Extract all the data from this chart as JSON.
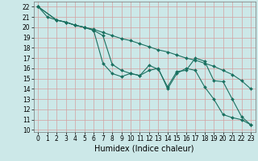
{
  "title": "",
  "xlabel": "Humidex (Indice chaleur)",
  "bg_color": "#cce8e8",
  "grid_color": "#d4a0a0",
  "line_color": "#1a7060",
  "xlim": [
    -0.5,
    23.5
  ],
  "ylim": [
    9.8,
    22.5
  ],
  "yticks": [
    10,
    11,
    12,
    13,
    14,
    15,
    16,
    17,
    18,
    19,
    20,
    21,
    22
  ],
  "xticks": [
    0,
    1,
    2,
    3,
    4,
    5,
    6,
    7,
    8,
    9,
    10,
    11,
    12,
    13,
    14,
    15,
    16,
    17,
    18,
    19,
    20,
    21,
    22,
    23
  ],
  "line1_x": [
    0,
    1,
    2,
    3,
    4,
    5,
    6,
    7,
    8,
    9,
    10,
    11,
    12,
    13,
    14,
    15,
    16,
    17,
    18,
    19,
    20,
    21,
    22,
    23
  ],
  "line1_y": [
    22,
    21,
    20.7,
    20.5,
    20.2,
    20.0,
    19.8,
    19.5,
    19.2,
    18.9,
    18.7,
    18.4,
    18.1,
    17.8,
    17.6,
    17.3,
    17.0,
    16.8,
    16.5,
    16.2,
    15.8,
    15.4,
    14.8,
    14.0
  ],
  "line2_x": [
    0,
    2,
    3,
    4,
    5,
    6,
    7,
    8,
    9,
    10,
    11,
    12,
    13,
    14,
    15,
    16,
    17,
    18,
    19,
    20,
    21,
    22,
    23
  ],
  "line2_y": [
    22,
    20.7,
    20.5,
    20.2,
    20.0,
    19.7,
    16.5,
    15.5,
    15.2,
    15.5,
    15.3,
    16.3,
    15.9,
    14.2,
    15.7,
    15.8,
    17.0,
    16.7,
    14.8,
    14.7,
    13.0,
    11.3,
    10.5
  ],
  "line3_x": [
    0,
    2,
    3,
    4,
    5,
    6,
    7,
    8,
    9,
    10,
    11,
    12,
    13,
    14,
    15,
    16,
    17,
    18,
    19,
    20,
    21,
    22,
    23
  ],
  "line3_y": [
    22,
    20.7,
    20.5,
    20.2,
    20.0,
    19.7,
    19.2,
    16.4,
    15.8,
    15.5,
    15.3,
    15.8,
    16.0,
    14.0,
    15.5,
    16.0,
    15.8,
    14.2,
    13.0,
    11.5,
    11.2,
    11.0,
    10.5
  ],
  "marker": "D",
  "markersize": 2,
  "linewidth": 0.8,
  "tick_fontsize": 5.5,
  "label_fontsize": 7
}
